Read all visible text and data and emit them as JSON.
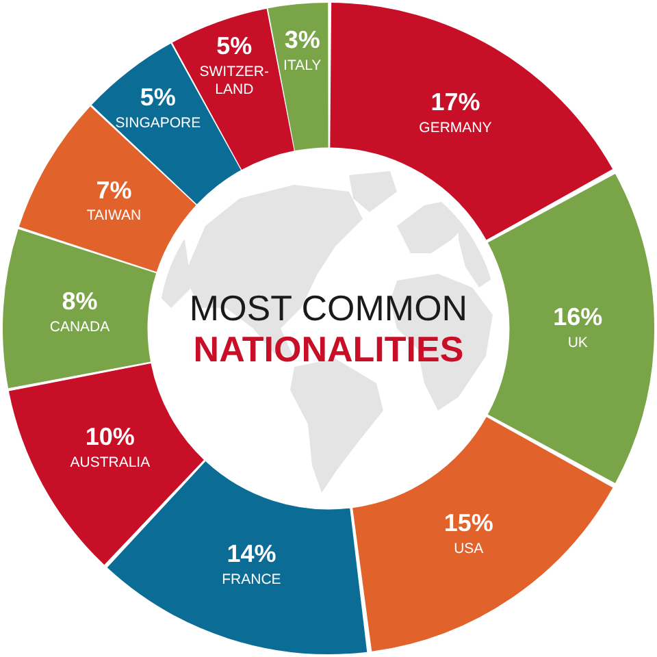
{
  "chart_data": {
    "type": "donut",
    "title": "MOST COMMON",
    "subtitle": "NATIONALITIES",
    "categories": [
      "GERMANY",
      "UK",
      "USA",
      "FRANCE",
      "AUSTRALIA",
      "CANADA",
      "TAIWAN",
      "SINGAPORE",
      "SWITZER-LAND",
      "ITALY"
    ],
    "values": [
      17,
      16,
      15,
      14,
      10,
      8,
      7,
      5,
      5,
      3
    ],
    "value_labels": [
      "17%",
      "16%",
      "15%",
      "14%",
      "10%",
      "8%",
      "7%",
      "5%",
      "5%",
      "3%"
    ],
    "colors": [
      "#c80f28",
      "#79a447",
      "#e2622b",
      "#0b6c95",
      "#c80f28",
      "#79a447",
      "#e2622b",
      "#0b6c95",
      "#c80f28",
      "#79a447"
    ]
  }
}
